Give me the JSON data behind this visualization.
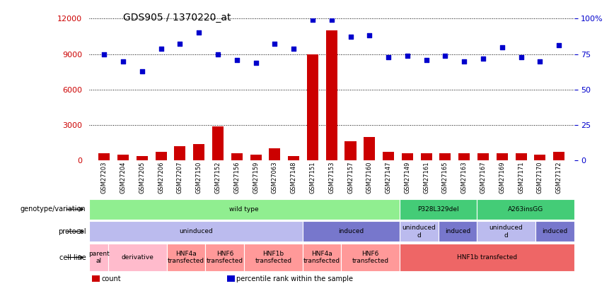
{
  "title": "GDS905 / 1370220_at",
  "samples": [
    "GSM27203",
    "GSM27204",
    "GSM27205",
    "GSM27206",
    "GSM27207",
    "GSM27150",
    "GSM27152",
    "GSM27156",
    "GSM27159",
    "GSM27063",
    "GSM27148",
    "GSM27151",
    "GSM27153",
    "GSM27157",
    "GSM27160",
    "GSM27147",
    "GSM27149",
    "GSM27161",
    "GSM27165",
    "GSM27163",
    "GSM27167",
    "GSM27169",
    "GSM27171",
    "GSM27170",
    "GSM27172"
  ],
  "counts": [
    600,
    500,
    350,
    700,
    1200,
    1400,
    2900,
    600,
    500,
    1000,
    400,
    9000,
    11000,
    1600,
    2000,
    700,
    600,
    600,
    600,
    600,
    600,
    600,
    600,
    500,
    700
  ],
  "percentiles": [
    75,
    70,
    63,
    79,
    82,
    90,
    75,
    71,
    69,
    82,
    79,
    99,
    99,
    87,
    88,
    73,
    74,
    71,
    74,
    70,
    72,
    80,
    73,
    70,
    81
  ],
  "bar_color": "#cc0000",
  "dot_color": "#0000cc",
  "ylim_left": [
    0,
    12000
  ],
  "ylim_right": [
    0,
    100
  ],
  "yticks_left": [
    0,
    3000,
    6000,
    9000,
    12000
  ],
  "yticks_right": [
    0,
    25,
    50,
    75,
    100
  ],
  "ytick_labels_right": [
    "0",
    "25",
    "50",
    "75",
    "100%"
  ],
  "bg_color": "#ffffff",
  "genotype_row": {
    "label": "genotype/variation",
    "segments": [
      {
        "text": "wild type",
        "start": 0,
        "end": 16,
        "color": "#90EE90"
      },
      {
        "text": "P328L329del",
        "start": 16,
        "end": 20,
        "color": "#44CC77"
      },
      {
        "text": "A263insGG",
        "start": 20,
        "end": 25,
        "color": "#44CC77"
      }
    ]
  },
  "protocol_row": {
    "label": "protocol",
    "segments": [
      {
        "text": "uninduced",
        "start": 0,
        "end": 11,
        "color": "#BBBBEE"
      },
      {
        "text": "induced",
        "start": 11,
        "end": 16,
        "color": "#7777CC"
      },
      {
        "text": "uninduced\nd",
        "start": 16,
        "end": 18,
        "color": "#BBBBEE"
      },
      {
        "text": "induced",
        "start": 18,
        "end": 20,
        "color": "#7777CC"
      },
      {
        "text": "uninduced\nd",
        "start": 20,
        "end": 23,
        "color": "#BBBBEE"
      },
      {
        "text": "induced",
        "start": 23,
        "end": 25,
        "color": "#7777CC"
      }
    ]
  },
  "cellline_row": {
    "label": "cell line",
    "segments": [
      {
        "text": "parent\nal",
        "start": 0,
        "end": 1,
        "color": "#FFBBCC"
      },
      {
        "text": "derivative",
        "start": 1,
        "end": 4,
        "color": "#FFBBCC"
      },
      {
        "text": "HNF4a\ntransfected",
        "start": 4,
        "end": 6,
        "color": "#FF9999"
      },
      {
        "text": "HNF6\ntransfected",
        "start": 6,
        "end": 8,
        "color": "#FF9999"
      },
      {
        "text": "HNF1b\ntransfected",
        "start": 8,
        "end": 11,
        "color": "#FF9999"
      },
      {
        "text": "HNF4a\ntransfected",
        "start": 11,
        "end": 13,
        "color": "#FF9999"
      },
      {
        "text": "HNF6\ntransfected",
        "start": 13,
        "end": 16,
        "color": "#FF9999"
      },
      {
        "text": "HNF1b transfected",
        "start": 16,
        "end": 25,
        "color": "#EE6666"
      }
    ]
  },
  "legend_items": [
    {
      "color": "#cc0000",
      "label": "count"
    },
    {
      "color": "#0000cc",
      "label": "percentile rank within the sample"
    }
  ]
}
